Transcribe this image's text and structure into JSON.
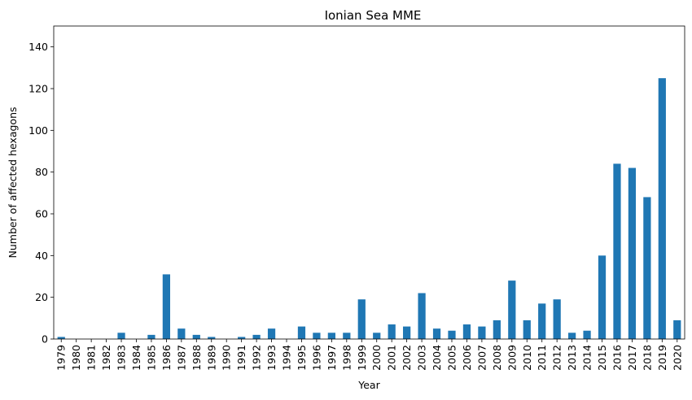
{
  "chart_data": {
    "type": "bar",
    "title": "Ionian Sea MME",
    "xlabel": "Year",
    "ylabel": "Number of affected hexagons",
    "ylim": [
      0,
      150
    ],
    "yticks": [
      0,
      20,
      40,
      60,
      80,
      100,
      120,
      140
    ],
    "color": "#1f77b4",
    "grid": false,
    "categories": [
      "1979",
      "1980",
      "1981",
      "1982",
      "1983",
      "1984",
      "1985",
      "1986",
      "1987",
      "1988",
      "1989",
      "1990",
      "1991",
      "1992",
      "1993",
      "1994",
      "1995",
      "1996",
      "1997",
      "1998",
      "1999",
      "2000",
      "2001",
      "2002",
      "2003",
      "2004",
      "2005",
      "2006",
      "2007",
      "2008",
      "2009",
      "2010",
      "2011",
      "2012",
      "2013",
      "2014",
      "2015",
      "2016",
      "2017",
      "2018",
      "2019",
      "2020"
    ],
    "values": [
      1,
      0,
      0,
      0,
      3,
      0,
      2,
      31,
      5,
      2,
      1,
      0,
      1,
      2,
      5,
      0,
      6,
      3,
      3,
      3,
      19,
      3,
      7,
      6,
      22,
      5,
      4,
      7,
      6,
      9,
      28,
      9,
      17,
      19,
      3,
      4,
      40,
      84,
      82,
      68,
      125,
      9
    ]
  }
}
